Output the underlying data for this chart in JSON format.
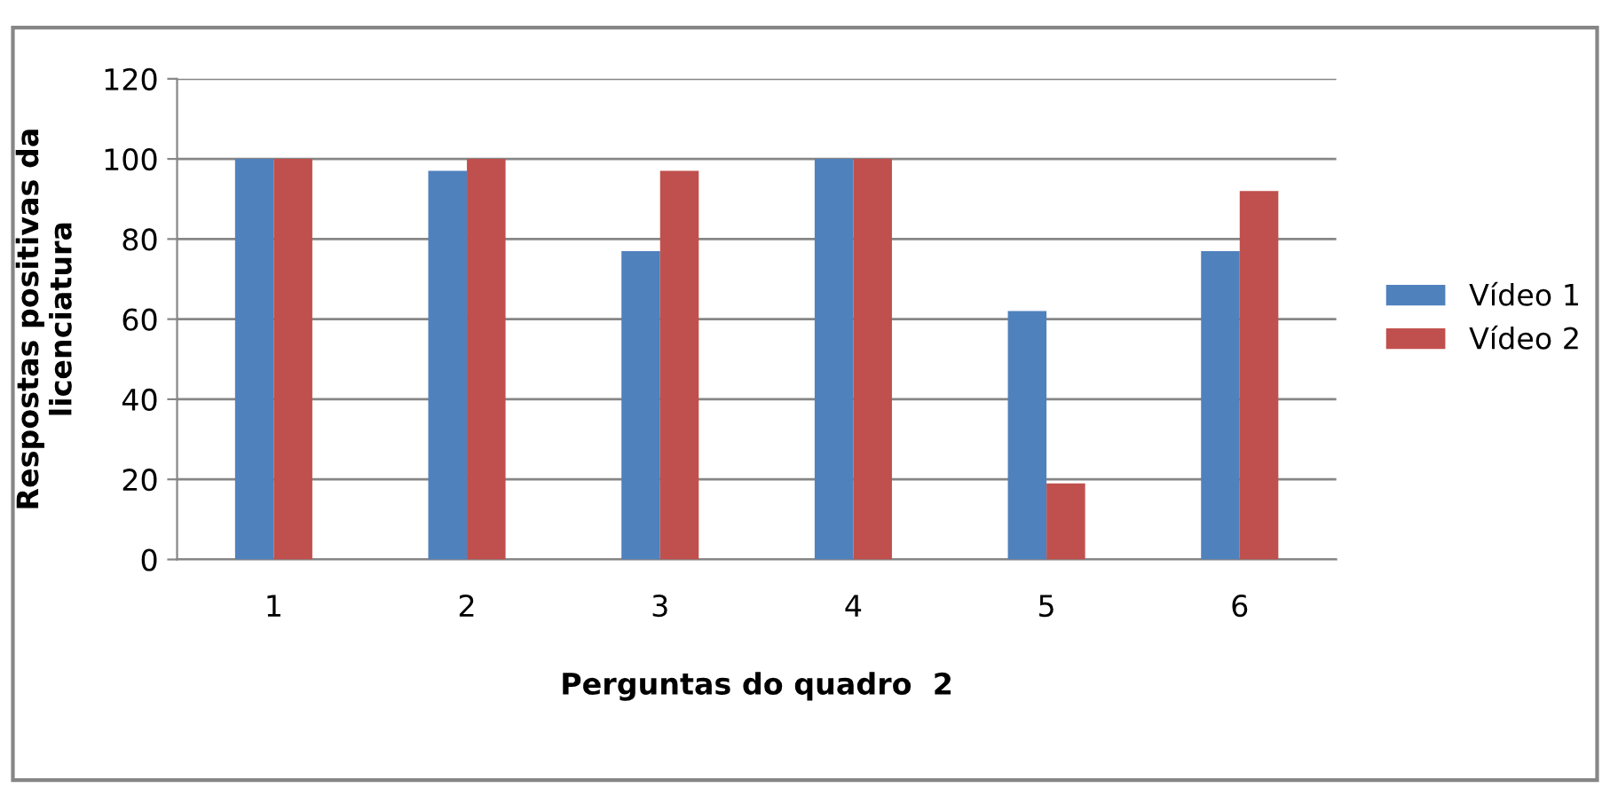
{
  "chart_data": {
    "type": "bar",
    "xlabel": "Perguntas do quadro  2",
    "ylabel": "Respostas positivas da\nlicenciatura",
    "categories": [
      "1",
      "2",
      "3",
      "4",
      "5",
      "6"
    ],
    "series": [
      {
        "name": "Vídeo 1",
        "color": "#4f81bd",
        "values": [
          100,
          97,
          77,
          100,
          62,
          77
        ]
      },
      {
        "name": "Vídeo 2",
        "color": "#c0504d",
        "values": [
          100,
          100,
          97,
          100,
          19,
          92
        ]
      }
    ],
    "ylim": [
      0,
      120
    ],
    "yticks": [
      0,
      20,
      40,
      60,
      80,
      100,
      120
    ],
    "grid": "y",
    "legend": "right"
  }
}
